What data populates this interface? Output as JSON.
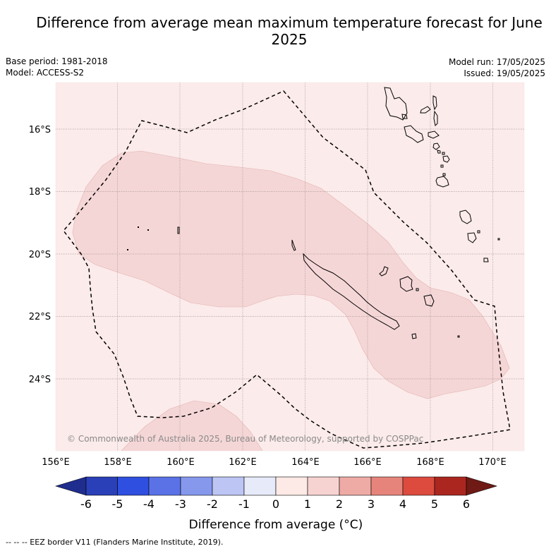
{
  "title": "Difference from average mean maximum temperature forecast for June 2025",
  "base_period": "Base period: 1981-2018",
  "model": "Model: ACCESS-S2",
  "model_run": "Model run: 17/05/2025",
  "issued": "Issued: 19/05/2025",
  "copyright": "© Commonwealth of Australia 2025, Bureau of Meteorology, supported by COSPPac",
  "footnote": "--  --  -- EEZ border V11 (Flanders Marine Institute, 2019).",
  "map": {
    "lon_ticks": [
      "156°E",
      "158°E",
      "160°E",
      "162°E",
      "164°E",
      "166°E",
      "168°E",
      "170°E"
    ],
    "lat_ticks": [
      "16°S",
      "18°S",
      "20°S",
      "22°S",
      "24°S"
    ],
    "background_anomaly_class": "0 to 1",
    "colors": {
      "class_0_1": "#fbebea",
      "class_1_2": "#f5d6d6",
      "coast": "#000000",
      "eez": "#000000"
    }
  },
  "legend": {
    "title": "Difference from average (°C)",
    "ticks": [
      "-6",
      "-5",
      "-4",
      "-3",
      "-2",
      "-1",
      "0",
      "1",
      "2",
      "3",
      "4",
      "5",
      "6"
    ],
    "colors": [
      "#1f2d8f",
      "#2a40b8",
      "#2f4fe0",
      "#5a72e6",
      "#8598ec",
      "#bcc5f3",
      "#e6eaf9",
      "#fde9e6",
      "#f6d3d1",
      "#eeaba5",
      "#e6847c",
      "#dc4b3e",
      "#ac2620",
      "#6f1a15"
    ]
  }
}
